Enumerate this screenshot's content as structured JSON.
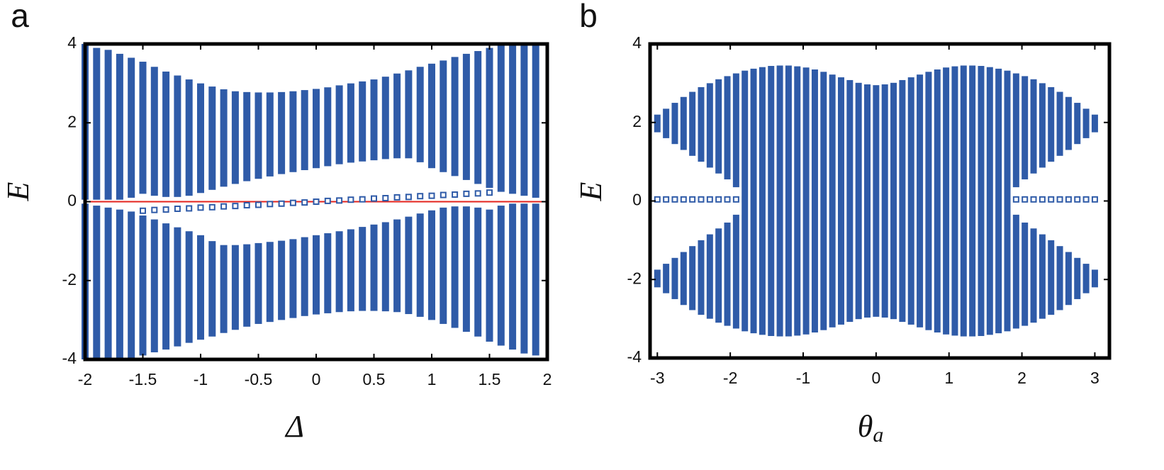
{
  "chart_data": [
    {
      "type": "range",
      "panel_label": "a",
      "xlabel": "Δ",
      "ylabel": "E",
      "xlim": [
        -2,
        2
      ],
      "ylim": [
        -4,
        4
      ],
      "xticks": [
        -2,
        -1.5,
        -1,
        -0.5,
        0,
        0.5,
        1,
        1.5,
        2
      ],
      "yticks": [
        -4,
        -2,
        0,
        2,
        4
      ],
      "x": [
        -2,
        -1.9,
        -1.8,
        -1.7,
        -1.6,
        -1.5,
        -1.4,
        -1.3,
        -1.2,
        -1.1,
        -1,
        -0.9,
        -0.8,
        -0.7,
        -0.6,
        -0.5,
        -0.4,
        -0.3,
        -0.2,
        -0.1,
        0,
        0.1,
        0.2,
        0.3,
        0.4,
        0.5,
        0.6,
        0.7,
        0.8,
        0.9,
        1,
        1.1,
        1.2,
        1.3,
        1.4,
        1.5,
        1.6,
        1.7,
        1.8,
        1.9
      ],
      "series": [
        {
          "color": "#2f5ba8",
          "low": [
            0.05,
            0.05,
            0.05,
            0.05,
            0.1,
            0.2,
            0.15,
            0.12,
            0.12,
            0.15,
            0.22,
            0.3,
            0.38,
            0.45,
            0.52,
            0.58,
            0.64,
            0.7,
            0.75,
            0.8,
            0.85,
            0.9,
            0.95,
            0.99,
            1.02,
            1.05,
            1.08,
            1.1,
            1.1,
            1.0,
            0.85,
            0.75,
            0.65,
            0.55,
            0.45,
            0.35,
            0.25,
            0.2,
            0.15,
            0.1
          ],
          "high": [
            4,
            3.9,
            3.85,
            3.75,
            3.65,
            3.55,
            3.42,
            3.3,
            3.2,
            3.1,
            3.0,
            2.92,
            2.85,
            2.8,
            2.78,
            2.77,
            2.77,
            2.78,
            2.8,
            2.83,
            2.86,
            2.9,
            2.95,
            3.0,
            3.05,
            3.1,
            3.17,
            3.25,
            3.33,
            3.42,
            3.5,
            3.58,
            3.67,
            3.75,
            3.82,
            3.9,
            4,
            4,
            4,
            4
          ]
        },
        {
          "color": "#2f5ba8",
          "low": [
            -4,
            -4,
            -4,
            -4,
            -4,
            -3.9,
            -3.82,
            -3.75,
            -3.67,
            -3.58,
            -3.5,
            -3.42,
            -3.33,
            -3.25,
            -3.17,
            -3.1,
            -3.05,
            -3.0,
            -2.95,
            -2.9,
            -2.86,
            -2.83,
            -2.8,
            -2.78,
            -2.77,
            -2.77,
            -2.78,
            -2.8,
            -2.85,
            -2.92,
            -3.0,
            -3.1,
            -3.2,
            -3.3,
            -3.42,
            -3.55,
            -3.65,
            -3.75,
            -3.85,
            -3.9
          ],
          "high": [
            -0.05,
            -0.1,
            -0.15,
            -0.2,
            -0.25,
            -0.35,
            -0.45,
            -0.55,
            -0.65,
            -0.75,
            -0.85,
            -1.0,
            -1.1,
            -1.1,
            -1.08,
            -1.05,
            -1.02,
            -0.99,
            -0.95,
            -0.9,
            -0.85,
            -0.8,
            -0.75,
            -0.7,
            -0.64,
            -0.58,
            -0.52,
            -0.45,
            -0.38,
            -0.3,
            -0.22,
            -0.15,
            -0.12,
            -0.12,
            -0.15,
            -0.2,
            -0.1,
            -0.05,
            -0.05,
            -0.05
          ]
        }
      ],
      "edge_states": {
        "color": "#2f5ba8",
        "values": [
          null,
          null,
          null,
          null,
          null,
          -0.23,
          -0.21,
          -0.2,
          -0.18,
          -0.17,
          -0.15,
          -0.14,
          -0.12,
          -0.11,
          -0.09,
          -0.08,
          -0.06,
          -0.05,
          -0.03,
          -0.02,
          0,
          0.02,
          0.03,
          0.05,
          0.06,
          0.08,
          0.09,
          0.11,
          0.12,
          0.14,
          0.15,
          0.17,
          0.18,
          0.2,
          0.21,
          0.23,
          null,
          null,
          null,
          null
        ]
      },
      "hline": {
        "y": 0,
        "color": "#e3231c"
      }
    },
    {
      "type": "range",
      "panel_label": "b",
      "xlabel": "θ",
      "xlabel_sub": "a",
      "ylabel": "E",
      "xlim": [
        -3.1,
        3.2
      ],
      "ylim": [
        -4,
        4
      ],
      "xticks": [
        -3,
        -2,
        -1,
        0,
        1,
        2,
        3
      ],
      "yticks": [
        -4,
        -2,
        0,
        2,
        4
      ],
      "x": [
        -3,
        -2.88,
        -2.76,
        -2.64,
        -2.52,
        -2.4,
        -2.28,
        -2.16,
        -2.04,
        -1.92,
        -1.8,
        -1.68,
        -1.56,
        -1.44,
        -1.32,
        -1.2,
        -1.08,
        -0.96,
        -0.84,
        -0.72,
        -0.6,
        -0.48,
        -0.36,
        -0.24,
        -0.12,
        0,
        0.12,
        0.24,
        0.36,
        0.48,
        0.6,
        0.72,
        0.84,
        0.96,
        1.08,
        1.2,
        1.32,
        1.44,
        1.56,
        1.68,
        1.8,
        1.92,
        2.04,
        2.16,
        2.28,
        2.4,
        2.52,
        2.64,
        2.76,
        2.88,
        3
      ],
      "series": [
        {
          "color": "#2f5ba8",
          "low": [
            1.75,
            1.6,
            1.45,
            1.3,
            1.15,
            1.0,
            0.85,
            0.7,
            0.55,
            0.35,
            0,
            0,
            0,
            0,
            0,
            0,
            0,
            0,
            0,
            0,
            0,
            0,
            0,
            0,
            0,
            0,
            0,
            0,
            0,
            0,
            0,
            0,
            0,
            0,
            0,
            0,
            0,
            0,
            0,
            0,
            0,
            0.35,
            0.55,
            0.7,
            0.85,
            1.0,
            1.15,
            1.3,
            1.45,
            1.6,
            1.75
          ],
          "high": [
            2.2,
            2.35,
            2.5,
            2.65,
            2.78,
            2.9,
            3.0,
            3.1,
            3.18,
            3.25,
            3.32,
            3.37,
            3.41,
            3.44,
            3.45,
            3.45,
            3.43,
            3.4,
            3.35,
            3.29,
            3.22,
            3.15,
            3.08,
            3.01,
            2.97,
            2.95,
            2.97,
            3.01,
            3.08,
            3.15,
            3.22,
            3.29,
            3.35,
            3.4,
            3.43,
            3.45,
            3.45,
            3.44,
            3.41,
            3.37,
            3.32,
            3.25,
            3.18,
            3.1,
            3.0,
            2.9,
            2.78,
            2.65,
            2.5,
            2.35,
            2.2
          ]
        },
        {
          "color": "#2f5ba8",
          "low": [
            -2.2,
            -2.35,
            -2.5,
            -2.65,
            -2.78,
            -2.9,
            -3.0,
            -3.1,
            -3.18,
            -3.25,
            -3.32,
            -3.37,
            -3.41,
            -3.44,
            -3.45,
            -3.45,
            -3.43,
            -3.4,
            -3.35,
            -3.29,
            -3.22,
            -3.15,
            -3.08,
            -3.01,
            -2.97,
            -2.95,
            -2.97,
            -3.01,
            -3.08,
            -3.15,
            -3.22,
            -3.29,
            -3.35,
            -3.4,
            -3.43,
            -3.45,
            -3.45,
            -3.44,
            -3.41,
            -3.37,
            -3.32,
            -3.25,
            -3.18,
            -3.1,
            -3.0,
            -2.9,
            -2.78,
            -2.65,
            -2.5,
            -2.35,
            -2.2
          ],
          "high": [
            -1.75,
            -1.6,
            -1.45,
            -1.3,
            -1.15,
            -1.0,
            -0.85,
            -0.7,
            -0.55,
            -0.35,
            0,
            0,
            0,
            0,
            0,
            0,
            0,
            0,
            0,
            0,
            0,
            0,
            0,
            0,
            0,
            0,
            0,
            0,
            0,
            0,
            0,
            0,
            0,
            0,
            0,
            0,
            0,
            0,
            0,
            0,
            0,
            -0.35,
            -0.55,
            -0.7,
            -0.85,
            -1.0,
            -1.15,
            -1.3,
            -1.45,
            -1.6,
            -1.75
          ]
        }
      ],
      "edge_states": {
        "color": "#2f5ba8",
        "values": [
          0.04,
          0.04,
          0.04,
          0.04,
          0.04,
          0.04,
          0.04,
          0.04,
          0.04,
          0.04,
          null,
          null,
          null,
          null,
          null,
          null,
          null,
          null,
          null,
          null,
          null,
          null,
          null,
          null,
          null,
          null,
          null,
          null,
          null,
          null,
          null,
          null,
          null,
          null,
          null,
          null,
          null,
          null,
          null,
          null,
          null,
          0.04,
          0.04,
          0.04,
          0.04,
          0.04,
          0.04,
          0.04,
          0.04,
          0.04,
          0.04
        ]
      }
    }
  ]
}
